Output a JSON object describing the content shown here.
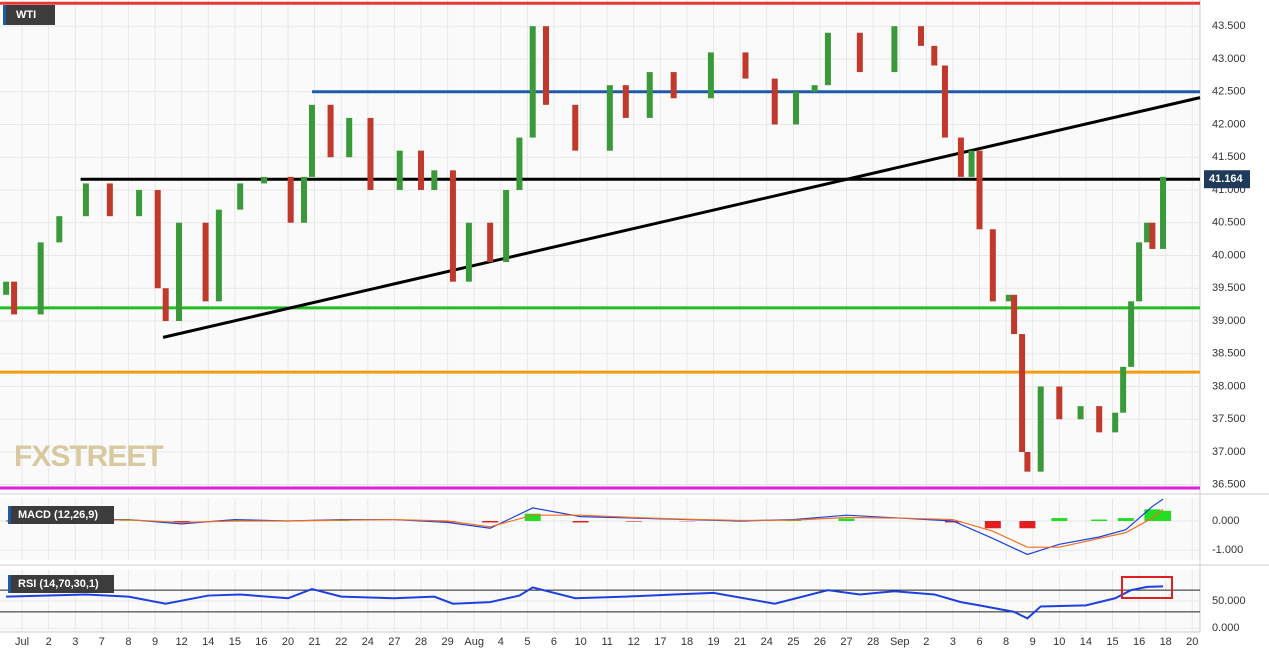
{
  "chart_data": [
    {
      "type": "candlestick",
      "title": "WTI",
      "watermark": "FXSTREET",
      "up_color": "#3a9a3a",
      "down_color": "#c0392b",
      "x": [
        -0.6,
        -0.3,
        0.7,
        1.4,
        2.4,
        3.3,
        4.4,
        5.1,
        5.4,
        5.9,
        6.9,
        7.4,
        8.2,
        9.1,
        10.1,
        10.6,
        10.9,
        11.6,
        12.3,
        13.1,
        14.2,
        15.0,
        15.5,
        16.2,
        16.8,
        17.6,
        18.2,
        18.7,
        19.2,
        19.7,
        20.8,
        22.1,
        22.7,
        23.6,
        24.5,
        25.9,
        27.2,
        28.3,
        29.1,
        29.8,
        30.3,
        31.5,
        32.8,
        33.8,
        34.3,
        34.7,
        35.3,
        35.7,
        36.0,
        36.5,
        37.1,
        37.3,
        37.6,
        37.8,
        38.3,
        39.0,
        39.8,
        40.5,
        41.1,
        41.4,
        41.7,
        42.0,
        42.3,
        42.5,
        42.9
      ],
      "open": [
        39.4,
        39.6,
        39.1,
        40.2,
        40.6,
        41.1,
        40.6,
        41.0,
        39.5,
        39.0,
        40.5,
        39.3,
        40.7,
        41.1,
        41.2,
        40.5,
        41.2,
        42.3,
        41.5,
        42.1,
        41.0,
        41.6,
        41.0,
        41.3,
        39.6,
        40.5,
        39.9,
        41.0,
        41.8,
        43.5,
        42.3,
        41.6,
        42.6,
        42.1,
        42.8,
        42.4,
        43.1,
        42.7,
        42.0,
        42.5,
        42.6,
        43.4,
        42.8,
        43.5,
        43.2,
        42.9,
        41.8,
        41.2,
        41.6,
        40.4,
        39.3,
        39.4,
        38.8,
        37.0,
        36.7,
        38.0,
        37.5,
        37.7,
        37.3,
        37.6,
        38.3,
        39.3,
        40.2,
        40.5,
        40.1
      ],
      "close": [
        39.6,
        39.1,
        40.2,
        40.6,
        41.1,
        40.6,
        41.0,
        39.5,
        39.0,
        40.5,
        39.3,
        40.7,
        41.1,
        41.2,
        40.5,
        41.2,
        42.3,
        41.5,
        42.1,
        41.0,
        41.6,
        41.0,
        41.3,
        39.6,
        40.5,
        39.9,
        41.0,
        41.8,
        43.5,
        42.3,
        41.6,
        42.6,
        42.1,
        42.8,
        42.4,
        43.1,
        42.7,
        42.0,
        42.5,
        42.6,
        43.4,
        42.8,
        43.5,
        43.2,
        42.9,
        41.8,
        41.2,
        41.6,
        40.4,
        39.3,
        39.4,
        38.8,
        37.0,
        36.7,
        38.0,
        37.5,
        37.7,
        37.3,
        37.6,
        38.3,
        39.3,
        40.2,
        40.5,
        40.1,
        41.2
      ],
      "levels": [
        {
          "value": 43.85,
          "color": "#e53935",
          "from": -0.83
        },
        {
          "value": 42.5,
          "color": "#1e5aa8",
          "from": 10.9
        },
        {
          "value": 41.164,
          "color": "#000000",
          "from": 2.2
        },
        {
          "value": 39.2,
          "color": "#1fbf1f",
          "from": -0.83
        },
        {
          "value": 38.22,
          "color": "#f39c12",
          "from": -0.83
        },
        {
          "value": 36.45,
          "color": "#e020e0",
          "from": -0.83
        }
      ],
      "trendline": {
        "x": [
          5.3,
          44.29
        ],
        "y": [
          38.75,
          42.41
        ],
        "color": "#000000"
      },
      "last_price": {
        "value": 41.164,
        "label": "41.164"
      },
      "xlim": [
        -0.83,
        44.29
      ],
      "ylim": [
        36.42,
        43.9
      ],
      "yticks": [
        {
          "value": 36.5,
          "label": "36.500"
        },
        {
          "value": 37,
          "label": "37.000"
        },
        {
          "value": 37.5,
          "label": "37.500"
        },
        {
          "value": 38,
          "label": "38.000"
        },
        {
          "value": 38.5,
          "label": "38.500"
        },
        {
          "value": 39,
          "label": "39.000"
        },
        {
          "value": 39.5,
          "label": "39.500"
        },
        {
          "value": 40,
          "label": "40.000"
        },
        {
          "value": 40.5,
          "label": "40.500"
        },
        {
          "value": 41,
          "label": "41.000"
        },
        {
          "value": 41.5,
          "label": "41.500"
        },
        {
          "value": 42,
          "label": "42.000"
        },
        {
          "value": 42.5,
          "label": "42.500"
        },
        {
          "value": 43,
          "label": "43.000"
        },
        {
          "value": 43.5,
          "label": "43.500"
        }
      ],
      "xticks": [
        {
          "value": 0,
          "label": "Jul"
        },
        {
          "value": 1,
          "label": "2"
        },
        {
          "value": 2,
          "label": "3"
        },
        {
          "value": 3,
          "label": "7"
        },
        {
          "value": 4,
          "label": "8"
        },
        {
          "value": 5,
          "label": "9"
        },
        {
          "value": 6,
          "label": "12"
        },
        {
          "value": 7,
          "label": "14"
        },
        {
          "value": 8,
          "label": "15"
        },
        {
          "value": 9,
          "label": "16"
        },
        {
          "value": 10,
          "label": "20"
        },
        {
          "value": 11,
          "label": "21"
        },
        {
          "value": 12,
          "label": "22"
        },
        {
          "value": 13,
          "label": "24"
        },
        {
          "value": 14,
          "label": "27"
        },
        {
          "value": 15,
          "label": "28"
        },
        {
          "value": 16,
          "label": "29"
        },
        {
          "value": 17,
          "label": "Aug"
        },
        {
          "value": 18,
          "label": "4"
        },
        {
          "value": 19,
          "label": "5"
        },
        {
          "value": 20,
          "label": "6"
        },
        {
          "value": 21,
          "label": "10"
        },
        {
          "value": 22,
          "label": "11"
        },
        {
          "value": 23,
          "label": "12"
        },
        {
          "value": 24,
          "label": "17"
        },
        {
          "value": 25,
          "label": "18"
        },
        {
          "value": 26,
          "label": "19"
        },
        {
          "value": 27,
          "label": "21"
        },
        {
          "value": 28,
          "label": "24"
        },
        {
          "value": 29,
          "label": "25"
        },
        {
          "value": 30,
          "label": "26"
        },
        {
          "value": 31,
          "label": "27"
        },
        {
          "value": 32,
          "label": "28"
        },
        {
          "value": 33,
          "label": "Sep"
        },
        {
          "value": 34,
          "label": "2"
        },
        {
          "value": 35,
          "label": "3"
        },
        {
          "value": 36,
          "label": "6"
        },
        {
          "value": 37,
          "label": "8"
        },
        {
          "value": 38,
          "label": "9"
        },
        {
          "value": 39,
          "label": "10"
        },
        {
          "value": 40,
          "label": "14"
        },
        {
          "value": 41,
          "label": "15"
        },
        {
          "value": 42,
          "label": "16"
        },
        {
          "value": 43,
          "label": "18"
        },
        {
          "value": 44,
          "label": "20"
        }
      ],
      "grid": true
    },
    {
      "type": "macd",
      "title": "MACD (12,26,9)",
      "x": [
        -0.6,
        2,
        4,
        6,
        8,
        10,
        12,
        14,
        16,
        17.6,
        19.2,
        21,
        23,
        25,
        27,
        29,
        31,
        33,
        35,
        36.5,
        37.8,
        39,
        40.5,
        41.5,
        42.5,
        42.9
      ],
      "series": [
        {
          "color": "#1e40e0",
          "values": [
            0,
            0.05,
            0.05,
            -0.1,
            0.05,
            0,
            0.05,
            0.05,
            -0.05,
            -0.25,
            0.45,
            0.15,
            0.1,
            0.05,
            0,
            0.05,
            0.2,
            0.1,
            0,
            -0.6,
            -1.15,
            -0.8,
            -0.55,
            -0.3,
            0.5,
            0.75
          ]
        },
        {
          "color": "#f07020",
          "values": [
            0,
            0.02,
            0.04,
            -0.05,
            0,
            0,
            0.03,
            0.05,
            0,
            -0.2,
            0.2,
            0.2,
            0.12,
            0.06,
            0.02,
            0.03,
            0.12,
            0.1,
            0.05,
            -0.35,
            -0.9,
            -0.9,
            -0.6,
            -0.4,
            0.1,
            0.4
          ]
        }
      ],
      "histogram": [
        0,
        0.03,
        0.01,
        -0.05,
        0.05,
        0,
        0.02,
        0,
        -0.05,
        -0.05,
        0.25,
        -0.05,
        -0.02,
        -0.01,
        -0.02,
        0.02,
        0.08,
        0,
        -0.05,
        -0.25,
        -0.25,
        0.1,
        0.05,
        0.1,
        0.4,
        0.35
      ],
      "up_color": "#22dd22",
      "down_color": "#e02020",
      "ylim": [
        -1.34,
        0.79
      ],
      "yticks": [
        {
          "value": 0,
          "label": "0.000"
        },
        {
          "value": -1,
          "label": "-1.000"
        }
      ]
    },
    {
      "type": "rsi",
      "title": "RSI (14,70,30,1)",
      "x": [
        -0.6,
        1,
        2.4,
        4,
        5.4,
        7,
        8.2,
        10,
        10.9,
        12,
        14,
        15.5,
        16.2,
        17.6,
        18.7,
        19.2,
        20.8,
        22.7,
        24.5,
        26,
        28.3,
        30.3,
        31.5,
        32.8,
        34.3,
        35.3,
        36,
        37.3,
        37.8,
        38.3,
        40,
        41.1,
        41.7,
        42.3,
        42.9
      ],
      "values": [
        58,
        60,
        62,
        58,
        45,
        60,
        62,
        55,
        72,
        58,
        55,
        58,
        45,
        48,
        60,
        75,
        55,
        58,
        62,
        65,
        45,
        70,
        62,
        68,
        62,
        48,
        42,
        30,
        18,
        40,
        42,
        55,
        70,
        76,
        77
      ],
      "color": "#1e40e0",
      "levels": [
        70,
        30
      ],
      "ylim": [
        -7,
        107
      ],
      "yticks": [
        {
          "value": 50,
          "label": "50.000"
        },
        {
          "value": 0,
          "label": "0.000"
        }
      ]
    }
  ]
}
